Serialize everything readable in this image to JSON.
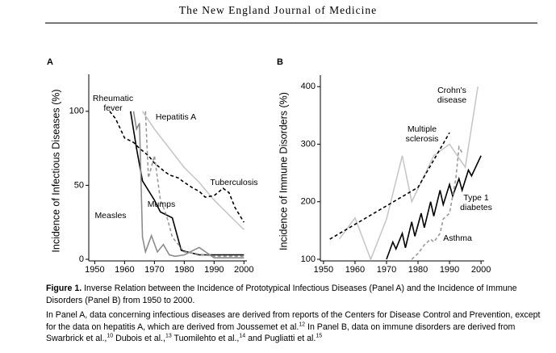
{
  "header": "The New England Journal of Medicine",
  "chart_data": [
    {
      "type": "line",
      "panel": "A",
      "y_label": "Incidence of Infectious Diseases (%)",
      "xlim": [
        1948,
        2001
      ],
      "xticks": [
        1950,
        1960,
        1970,
        1980,
        1990,
        2000
      ],
      "ylim": [
        0,
        125
      ],
      "yticks": [
        0,
        50,
        100
      ],
      "series": [
        {
          "name": "Rheumatic fever",
          "color": "#000000",
          "dashed": false,
          "x": [
            1962,
            1964,
            1966,
            1970,
            1972,
            1976,
            1979,
            1985,
            2000
          ],
          "values": [
            100,
            75,
            53,
            40,
            32,
            28,
            6,
            3,
            3
          ]
        },
        {
          "name": "Hepatitis A",
          "color": "#c8c8c8",
          "dashed": false,
          "x": [
            1966,
            1970,
            1975,
            1980,
            1985,
            1990,
            1995,
            2000
          ],
          "values": [
            100,
            88,
            75,
            62,
            52,
            40,
            30,
            20
          ]
        },
        {
          "name": "Tuberculosis",
          "color": "#000000",
          "dashed": true,
          "x": [
            1955,
            1957,
            1960,
            1963,
            1965,
            1968,
            1970,
            1973,
            1975,
            1978,
            1980,
            1983,
            1985,
            1987,
            1990,
            1993,
            1995,
            1997,
            2000
          ],
          "values": [
            100,
            95,
            82,
            79,
            75,
            70,
            65,
            60,
            57,
            55,
            52,
            48,
            46,
            42,
            43,
            48,
            45,
            35,
            25
          ]
        },
        {
          "name": "Mumps",
          "color": "#999999",
          "dashed": true,
          "x": [
            1967,
            1968,
            1970,
            1972,
            1974,
            1976,
            1980,
            1990,
            2000
          ],
          "values": [
            100,
            55,
            70,
            40,
            30,
            15,
            5,
            2,
            2
          ]
        },
        {
          "name": "Measles",
          "color": "#8c8c8c",
          "dashed": false,
          "x": [
            1963,
            1964,
            1965,
            1966,
            1967,
            1969,
            1971,
            1973,
            1975,
            1977,
            1980,
            1985,
            1990,
            2000
          ],
          "values": [
            100,
            88,
            92,
            15,
            5,
            16,
            5,
            10,
            3,
            2,
            3,
            8,
            1,
            1
          ]
        }
      ]
    },
    {
      "type": "line",
      "panel": "B",
      "y_label": "Incidence of Immune Disorders (%)",
      "xlim": [
        1949,
        2001
      ],
      "xticks": [
        1950,
        1960,
        1970,
        1980,
        1990,
        2000
      ],
      "ylim": [
        100,
        420
      ],
      "yticks": [
        100,
        200,
        300,
        400
      ],
      "series": [
        {
          "name": "Crohn's disease",
          "color": "#c8c8c8",
          "dashed": false,
          "x": [
            1955,
            1960,
            1965,
            1970,
            1975,
            1978,
            1985,
            1990,
            1995,
            1999
          ],
          "values": [
            135,
            172,
            100,
            170,
            280,
            200,
            280,
            300,
            260,
            400
          ]
        },
        {
          "name": "Multiple sclerosis",
          "color": "#000000",
          "dashed": true,
          "x": [
            1952,
            1980,
            1990
          ],
          "values": [
            135,
            225,
            320
          ]
        },
        {
          "name": "Type 1 diabetes",
          "color": "#000000",
          "dashed": false,
          "x": [
            1970,
            1972,
            1973,
            1975,
            1976,
            1978,
            1979,
            1981,
            1982,
            1984,
            1985,
            1987,
            1988,
            1990,
            1991,
            1993,
            1994,
            1996,
            1997,
            2000
          ],
          "values": [
            100,
            130,
            118,
            145,
            120,
            165,
            140,
            180,
            155,
            200,
            175,
            220,
            195,
            230,
            210,
            240,
            220,
            255,
            245,
            280
          ]
        },
        {
          "name": "Asthma",
          "color": "#999999",
          "dashed": true,
          "x": [
            1978,
            1980,
            1982,
            1984,
            1985,
            1987,
            1988,
            1990,
            1992,
            1993,
            1994
          ],
          "values": [
            100,
            110,
            125,
            135,
            130,
            145,
            170,
            180,
            240,
            295,
            285
          ]
        }
      ]
    }
  ],
  "caption": {
    "label": "Figure 1.",
    "title": "Inverse Relation between the Incidence of Prototypical Infectious Diseases (Panel A) and the Incidence of Immune Disorders (Panel B) from 1950 to 2000.",
    "notes": [
      {
        "text": "In Panel A, data concerning infectious diseases are derived from reports of the Centers for Disease Control and Prevention, except for the data on hepatitis A, which are derived from Joussemet et al.",
        "ref": "12"
      },
      {
        "text": " In Panel B, data on immune disorders are derived from Swarbrick et al.,",
        "ref": "10"
      },
      {
        "text": " Dubois et al.,",
        "ref": "13"
      },
      {
        "text": " Tuomilehto et al.,",
        "ref": "14"
      },
      {
        "text": " and Pugliatti et al.",
        "ref": "15"
      }
    ]
  }
}
